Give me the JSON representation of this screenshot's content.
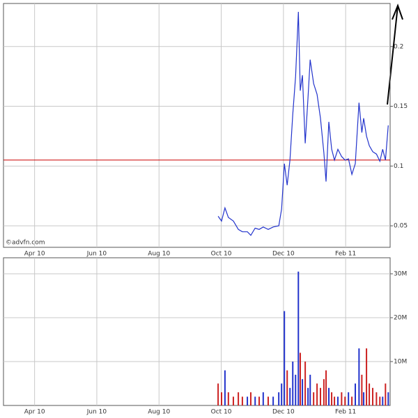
{
  "source": "©advfn.com",
  "chart_data": [
    {
      "type": "line",
      "x": [
        9.9,
        10.01,
        10.12,
        10.23,
        10.39,
        10.55,
        10.68,
        10.84,
        10.95,
        11.09,
        11.22,
        11.35,
        11.51,
        11.67,
        11.85,
        11.94,
        12.03,
        12.12,
        12.21,
        12.3,
        12.39,
        12.48,
        12.54,
        12.61,
        12.7,
        12.79,
        12.86,
        12.97,
        13.08,
        13.19,
        13.3,
        13.37,
        13.46,
        13.55,
        13.64,
        13.75,
        13.87,
        13.98,
        14.09,
        14.2,
        14.31,
        14.43,
        14.52,
        14.58,
        14.67,
        14.76,
        14.87,
        14.99,
        15.1,
        15.19,
        15.28,
        15.37
      ],
      "series": [
        {
          "color": "#2233cc",
          "values": [
            0.058,
            0.054,
            0.065,
            0.057,
            0.054,
            0.047,
            0.045,
            0.045,
            0.042,
            0.048,
            0.047,
            0.049,
            0.047,
            0.049,
            0.05,
            0.064,
            0.102,
            0.084,
            0.105,
            0.143,
            0.175,
            0.229,
            0.163,
            0.176,
            0.119,
            0.157,
            0.189,
            0.169,
            0.16,
            0.14,
            0.111,
            0.087,
            0.137,
            0.114,
            0.105,
            0.114,
            0.108,
            0.105,
            0.106,
            0.093,
            0.102,
            0.153,
            0.128,
            0.14,
            0.125,
            0.117,
            0.112,
            0.11,
            0.104,
            0.114,
            0.105,
            0.134
          ]
        }
      ],
      "reference_line": {
        "value": 0.105,
        "color": "#cc0000"
      },
      "xlim": [
        3,
        15.43
      ],
      "xticks": [
        {
          "value": 4,
          "label": "Apr 10"
        },
        {
          "value": 6,
          "label": "Jun 10"
        },
        {
          "value": 8,
          "label": "Aug 10"
        },
        {
          "value": 10,
          "label": "Oct 10"
        },
        {
          "value": 12,
          "label": "Dec 10"
        },
        {
          "value": 14,
          "label": "Feb 11"
        }
      ],
      "ylim": [
        0.032,
        0.236
      ],
      "yticks": [
        0.05,
        0.1,
        0.15,
        0.2
      ],
      "grid": true
    },
    {
      "type": "bar",
      "x": [
        9.9,
        10.01,
        10.12,
        10.23,
        10.39,
        10.55,
        10.68,
        10.84,
        10.95,
        11.09,
        11.22,
        11.35,
        11.51,
        11.67,
        11.85,
        11.94,
        12.03,
        12.12,
        12.21,
        12.3,
        12.39,
        12.48,
        12.54,
        12.61,
        12.7,
        12.79,
        12.86,
        12.97,
        13.08,
        13.19,
        13.3,
        13.37,
        13.46,
        13.55,
        13.64,
        13.75,
        13.87,
        13.98,
        14.09,
        14.2,
        14.31,
        14.43,
        14.52,
        14.58,
        14.67,
        14.76,
        14.87,
        14.99,
        15.1,
        15.19,
        15.28,
        15.37
      ],
      "values": [
        5000000,
        3000000,
        8000000,
        3000000,
        2000000,
        3000000,
        2000000,
        2000000,
        3000000,
        2000000,
        2000000,
        3000000,
        2000000,
        2000000,
        3000000,
        5000000,
        21500000,
        8000000,
        4000000,
        10000000,
        7000000,
        30500000,
        12000000,
        6000000,
        10000000,
        4000000,
        7000000,
        3000000,
        5000000,
        4000000,
        6000000,
        8000000,
        4000000,
        3000000,
        2000000,
        2000000,
        3000000,
        2000000,
        3000000,
        2000000,
        5000000,
        13000000,
        7000000,
        3000000,
        13000000,
        5000000,
        4000000,
        3000000,
        2000000,
        2000000,
        5000000,
        3000000
      ],
      "colors": [
        "#cc2222",
        "#cc2222",
        "#2233cc",
        "#cc2222",
        "#cc2222",
        "#cc2222",
        "#cc2222",
        "#2233cc",
        "#cc2222",
        "#2233cc",
        "#cc2222",
        "#2233cc",
        "#cc2222",
        "#2233cc",
        "#2233cc",
        "#2233cc",
        "#2233cc",
        "#cc2222",
        "#2233cc",
        "#2233cc",
        "#2233cc",
        "#2233cc",
        "#cc2222",
        "#2233cc",
        "#cc2222",
        "#2233cc",
        "#2233cc",
        "#cc2222",
        "#cc2222",
        "#cc2222",
        "#cc2222",
        "#cc2222",
        "#2233cc",
        "#cc2222",
        "#cc2222",
        "#2233cc",
        "#cc2222",
        "#cc2222",
        "#2233cc",
        "#cc2222",
        "#2233cc",
        "#2233cc",
        "#cc2222",
        "#2233cc",
        "#cc2222",
        "#cc2222",
        "#cc2222",
        "#cc2222",
        "#cc2222",
        "#2233cc",
        "#cc2222",
        "#2233cc"
      ],
      "xlim": [
        3,
        15.43
      ],
      "xticks": [
        {
          "value": 4,
          "label": "Apr 10"
        },
        {
          "value": 6,
          "label": "Jun 10"
        },
        {
          "value": 8,
          "label": "Aug 10"
        },
        {
          "value": 10,
          "label": "Oct 10"
        },
        {
          "value": 12,
          "label": "Dec 10"
        },
        {
          "value": 14,
          "label": "Feb 11"
        }
      ],
      "ylim": [
        0,
        33650000
      ],
      "yticks": [
        {
          "value": 10000000,
          "label": "10M"
        },
        {
          "value": 20000000,
          "label": "20M"
        },
        {
          "value": 30000000,
          "label": "30M"
        }
      ],
      "grid": true
    }
  ]
}
